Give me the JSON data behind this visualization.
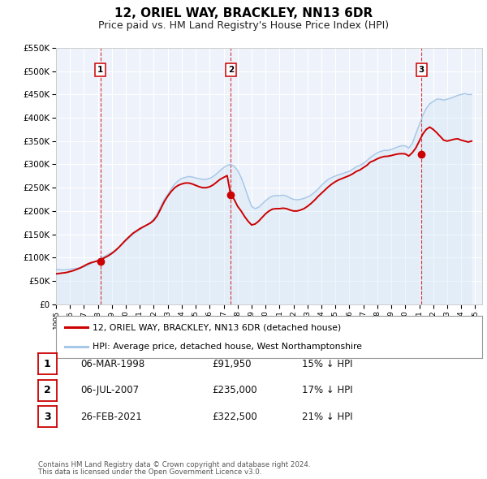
{
  "title": "12, ORIEL WAY, BRACKLEY, NN13 6DR",
  "subtitle": "Price paid vs. HM Land Registry's House Price Index (HPI)",
  "title_fontsize": 11,
  "subtitle_fontsize": 9,
  "hpi_color": "#a8c8e8",
  "hpi_fill_color": "#d0e4f4",
  "price_color": "#cc0000",
  "plot_bg_color": "#eef3fb",
  "ylim": [
    0,
    550000
  ],
  "yticks": [
    0,
    50000,
    100000,
    150000,
    200000,
    250000,
    300000,
    350000,
    400000,
    450000,
    500000,
    550000
  ],
  "ytick_labels": [
    "£0",
    "£50K",
    "£100K",
    "£150K",
    "£200K",
    "£250K",
    "£300K",
    "£350K",
    "£400K",
    "£450K",
    "£500K",
    "£550K"
  ],
  "xmin": 1995.0,
  "xmax": 2025.5,
  "xticks": [
    1995,
    1996,
    1997,
    1998,
    1999,
    2000,
    2001,
    2002,
    2003,
    2004,
    2005,
    2006,
    2007,
    2008,
    2009,
    2010,
    2011,
    2012,
    2013,
    2014,
    2015,
    2016,
    2017,
    2018,
    2019,
    2020,
    2021,
    2022,
    2023,
    2024,
    2025
  ],
  "transactions": [
    {
      "label": "1",
      "date_num": 1998.18,
      "price": 91950
    },
    {
      "label": "2",
      "date_num": 2007.51,
      "price": 235000
    },
    {
      "label": "3",
      "date_num": 2021.15,
      "price": 322500
    }
  ],
  "legend_label_price": "12, ORIEL WAY, BRACKLEY, NN13 6DR (detached house)",
  "legend_label_hpi": "HPI: Average price, detached house, West Northamptonshire",
  "table_rows": [
    [
      "1",
      "06-MAR-1998",
      "£91,950",
      "15% ↓ HPI"
    ],
    [
      "2",
      "06-JUL-2007",
      "£235,000",
      "17% ↓ HPI"
    ],
    [
      "3",
      "26-FEB-2021",
      "£322,500",
      "21% ↓ HPI"
    ]
  ],
  "footnote1": "Contains HM Land Registry data © Crown copyright and database right 2024.",
  "footnote2": "This data is licensed under the Open Government Licence v3.0.",
  "hpi_data_x": [
    1995.0,
    1995.25,
    1995.5,
    1995.75,
    1996.0,
    1996.25,
    1996.5,
    1996.75,
    1997.0,
    1997.25,
    1997.5,
    1997.75,
    1998.0,
    1998.25,
    1998.5,
    1998.75,
    1999.0,
    1999.25,
    1999.5,
    1999.75,
    2000.0,
    2000.25,
    2000.5,
    2000.75,
    2001.0,
    2001.25,
    2001.5,
    2001.75,
    2002.0,
    2002.25,
    2002.5,
    2002.75,
    2003.0,
    2003.25,
    2003.5,
    2003.75,
    2004.0,
    2004.25,
    2004.5,
    2004.75,
    2005.0,
    2005.25,
    2005.5,
    2005.75,
    2006.0,
    2006.25,
    2006.5,
    2006.75,
    2007.0,
    2007.25,
    2007.5,
    2007.75,
    2008.0,
    2008.25,
    2008.5,
    2008.75,
    2009.0,
    2009.25,
    2009.5,
    2009.75,
    2010.0,
    2010.25,
    2010.5,
    2010.75,
    2011.0,
    2011.25,
    2011.5,
    2011.75,
    2012.0,
    2012.25,
    2012.5,
    2012.75,
    2013.0,
    2013.25,
    2013.5,
    2013.75,
    2014.0,
    2014.25,
    2014.5,
    2014.75,
    2015.0,
    2015.25,
    2015.5,
    2015.75,
    2016.0,
    2016.25,
    2016.5,
    2016.75,
    2017.0,
    2017.25,
    2017.5,
    2017.75,
    2018.0,
    2018.25,
    2018.5,
    2018.75,
    2019.0,
    2019.25,
    2019.5,
    2019.75,
    2020.0,
    2020.25,
    2020.5,
    2020.75,
    2021.0,
    2021.25,
    2021.5,
    2021.75,
    2022.0,
    2022.25,
    2022.5,
    2022.75,
    2023.0,
    2023.25,
    2023.5,
    2023.75,
    2024.0,
    2024.25,
    2024.5,
    2024.75
  ],
  "hpi_data_y": [
    75000,
    74000,
    73500,
    74000,
    75000,
    76000,
    77000,
    78000,
    80000,
    83000,
    87000,
    91000,
    95000,
    99000,
    103000,
    107000,
    111000,
    116000,
    122000,
    129000,
    136000,
    143000,
    150000,
    155000,
    160000,
    165000,
    170000,
    175000,
    183000,
    195000,
    210000,
    225000,
    235000,
    248000,
    258000,
    265000,
    270000,
    272000,
    274000,
    273000,
    271000,
    269000,
    268000,
    268000,
    270000,
    274000,
    280000,
    287000,
    293000,
    298000,
    300000,
    296000,
    287000,
    272000,
    252000,
    230000,
    210000,
    205000,
    208000,
    215000,
    222000,
    228000,
    232000,
    233000,
    233000,
    234000,
    232000,
    228000,
    225000,
    224000,
    225000,
    227000,
    230000,
    234000,
    240000,
    247000,
    255000,
    262000,
    268000,
    272000,
    275000,
    278000,
    280000,
    283000,
    285000,
    290000,
    295000,
    298000,
    302000,
    308000,
    315000,
    320000,
    325000,
    328000,
    330000,
    330000,
    332000,
    335000,
    338000,
    340000,
    340000,
    335000,
    345000,
    365000,
    385000,
    405000,
    420000,
    430000,
    435000,
    440000,
    440000,
    438000,
    440000,
    442000,
    445000,
    448000,
    450000,
    452000,
    450000,
    450000
  ],
  "price_data_x": [
    1995.0,
    1995.25,
    1995.5,
    1995.75,
    1996.0,
    1996.25,
    1996.5,
    1996.75,
    1997.0,
    1997.25,
    1997.5,
    1997.75,
    1998.0,
    1998.25,
    1998.5,
    1998.75,
    1999.0,
    1999.25,
    1999.5,
    1999.75,
    2000.0,
    2000.25,
    2000.5,
    2000.75,
    2001.0,
    2001.25,
    2001.5,
    2001.75,
    2002.0,
    2002.25,
    2002.5,
    2002.75,
    2003.0,
    2003.25,
    2003.5,
    2003.75,
    2004.0,
    2004.25,
    2004.5,
    2004.75,
    2005.0,
    2005.25,
    2005.5,
    2005.75,
    2006.0,
    2006.25,
    2006.5,
    2006.75,
    2007.0,
    2007.25,
    2007.5,
    2007.75,
    2008.0,
    2008.25,
    2008.5,
    2008.75,
    2009.0,
    2009.25,
    2009.5,
    2009.75,
    2010.0,
    2010.25,
    2010.5,
    2010.75,
    2011.0,
    2011.25,
    2011.5,
    2011.75,
    2012.0,
    2012.25,
    2012.5,
    2012.75,
    2013.0,
    2013.25,
    2013.5,
    2013.75,
    2014.0,
    2014.25,
    2014.5,
    2014.75,
    2015.0,
    2015.25,
    2015.5,
    2015.75,
    2016.0,
    2016.25,
    2016.5,
    2016.75,
    2017.0,
    2017.25,
    2017.5,
    2017.75,
    2018.0,
    2018.25,
    2018.5,
    2018.75,
    2019.0,
    2019.25,
    2019.5,
    2019.75,
    2020.0,
    2020.25,
    2020.5,
    2020.75,
    2021.0,
    2021.25,
    2021.5,
    2021.75,
    2022.0,
    2022.25,
    2022.5,
    2022.75,
    2023.0,
    2023.25,
    2023.5,
    2023.75,
    2024.0,
    2024.25,
    2024.5,
    2024.75
  ],
  "price_data_y": [
    65000,
    66000,
    67000,
    68000,
    70000,
    72000,
    75000,
    78000,
    82000,
    86000,
    89000,
    91000,
    92950,
    96000,
    100000,
    104000,
    109000,
    115000,
    122000,
    130000,
    138000,
    145000,
    152000,
    157000,
    162000,
    166000,
    170000,
    174000,
    180000,
    190000,
    205000,
    220000,
    232000,
    242000,
    250000,
    255000,
    258000,
    260000,
    260000,
    258000,
    255000,
    252000,
    250000,
    250000,
    252000,
    256000,
    262000,
    268000,
    272000,
    276000,
    235000,
    225000,
    210000,
    200000,
    188000,
    178000,
    170000,
    172000,
    178000,
    186000,
    194000,
    200000,
    204000,
    205000,
    205000,
    206000,
    205000,
    202000,
    200000,
    200000,
    202000,
    205000,
    210000,
    216000,
    223000,
    231000,
    238000,
    245000,
    252000,
    258000,
    263000,
    267000,
    270000,
    273000,
    276000,
    280000,
    285000,
    288000,
    293000,
    298000,
    305000,
    308000,
    312000,
    315000,
    317000,
    317500,
    319000,
    321000,
    322500,
    323000,
    322500,
    318000,
    325000,
    335000,
    350000,
    365000,
    375000,
    380000,
    375000,
    368000,
    360000,
    352000,
    350000,
    352000,
    354000,
    355000,
    352000,
    350000,
    348000,
    350000
  ]
}
